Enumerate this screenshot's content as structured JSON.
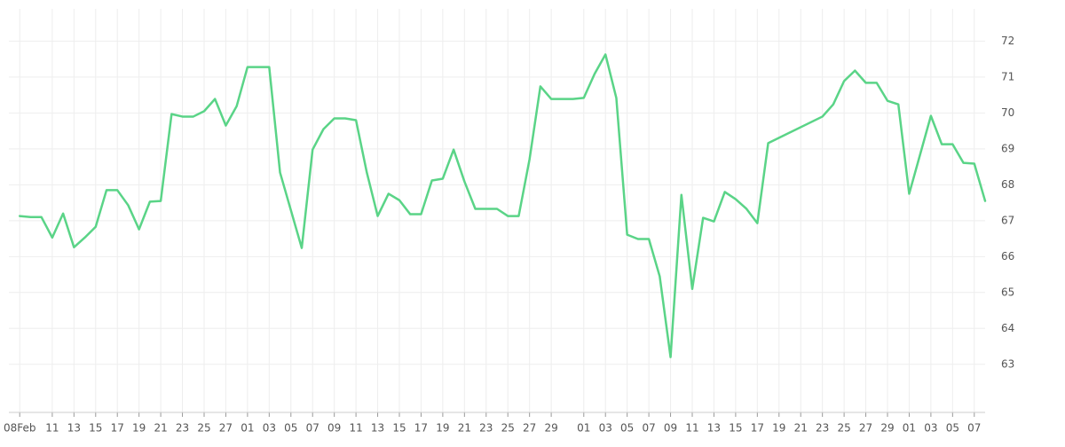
{
  "chart_data": {
    "type": "line",
    "color": "#5ad487",
    "grid": true,
    "x": [
      "02-08",
      "02-09",
      "02-10",
      "02-11",
      "02-12",
      "02-13",
      "02-14",
      "02-15",
      "02-16",
      "02-17",
      "02-18",
      "02-19",
      "02-20",
      "02-21",
      "02-22",
      "02-23",
      "02-24",
      "02-25",
      "02-26",
      "02-27",
      "02-28",
      "03-01",
      "03-02",
      "03-03",
      "03-04",
      "03-06",
      "03-07",
      "03-08",
      "03-09",
      "03-10",
      "03-11",
      "03-12",
      "03-13",
      "03-14",
      "03-15",
      "03-16",
      "03-17",
      "03-18",
      "03-19",
      "03-20",
      "03-21",
      "03-22",
      "03-23",
      "03-24",
      "03-25",
      "03-26",
      "03-27",
      "03-28",
      "03-29",
      "03-30",
      "03-31",
      "04-01",
      "04-02",
      "04-03",
      "04-04",
      "04-05",
      "04-06",
      "04-07",
      "04-08",
      "04-09",
      "04-10",
      "04-11",
      "04-12",
      "04-13",
      "04-14",
      "04-15",
      "04-16",
      "04-17",
      "04-18",
      "04-23",
      "04-24",
      "04-25",
      "04-26",
      "04-27",
      "04-28",
      "04-29",
      "04-30",
      "05-01",
      "05-03",
      "05-04",
      "05-05",
      "05-06",
      "05-07",
      "05-08"
    ],
    "values": [
      67.13,
      67.1,
      67.1,
      66.53,
      67.2,
      66.26,
      66.53,
      66.83,
      67.85,
      67.85,
      67.43,
      66.76,
      67.53,
      67.55,
      69.97,
      69.9,
      69.9,
      70.05,
      70.39,
      69.65,
      70.19,
      71.28,
      71.28,
      71.28,
      68.34,
      66.24,
      68.98,
      69.55,
      69.85,
      69.85,
      69.8,
      68.34,
      67.13,
      67.75,
      67.57,
      67.18,
      67.18,
      68.12,
      68.17,
      68.98,
      68.09,
      67.33,
      67.33,
      67.33,
      67.13,
      67.13,
      68.71,
      70.74,
      70.39,
      70.39,
      70.39,
      70.42,
      71.09,
      71.63,
      70.42,
      66.61,
      66.49,
      66.49,
      65.45,
      63.2,
      67.72,
      65.1,
      67.08,
      66.98,
      67.8,
      67.6,
      67.33,
      66.93,
      69.16,
      69.9,
      70.24,
      70.89,
      71.18,
      70.84,
      70.84,
      70.34,
      70.24,
      67.75,
      69.92,
      69.13,
      69.13,
      68.61,
      68.59,
      67.55
    ],
    "xlim": [
      "02-07",
      "05-08"
    ],
    "xticks": [
      {
        "value": "02-08",
        "label": "08Feb"
      },
      {
        "value": "02-11",
        "label": "11"
      },
      {
        "value": "02-13",
        "label": "13"
      },
      {
        "value": "02-15",
        "label": "15"
      },
      {
        "value": "02-17",
        "label": "17"
      },
      {
        "value": "02-19",
        "label": "19"
      },
      {
        "value": "02-21",
        "label": "21"
      },
      {
        "value": "02-23",
        "label": "23"
      },
      {
        "value": "02-25",
        "label": "25"
      },
      {
        "value": "02-27",
        "label": "27"
      },
      {
        "value": "03-01",
        "label": "01"
      },
      {
        "value": "03-03",
        "label": "03"
      },
      {
        "value": "03-05",
        "label": "05"
      },
      {
        "value": "03-07",
        "label": "07"
      },
      {
        "value": "03-09",
        "label": "09"
      },
      {
        "value": "03-11",
        "label": "11"
      },
      {
        "value": "03-13",
        "label": "13"
      },
      {
        "value": "03-15",
        "label": "15"
      },
      {
        "value": "03-17",
        "label": "17"
      },
      {
        "value": "03-19",
        "label": "19"
      },
      {
        "value": "03-21",
        "label": "21"
      },
      {
        "value": "03-23",
        "label": "23"
      },
      {
        "value": "03-25",
        "label": "25"
      },
      {
        "value": "03-27",
        "label": "27"
      },
      {
        "value": "03-29",
        "label": "29"
      },
      {
        "value": "04-01",
        "label": "01"
      },
      {
        "value": "04-03",
        "label": "03"
      },
      {
        "value": "04-05",
        "label": "05"
      },
      {
        "value": "04-07",
        "label": "07"
      },
      {
        "value": "04-09",
        "label": "09"
      },
      {
        "value": "04-11",
        "label": "11"
      },
      {
        "value": "04-13",
        "label": "13"
      },
      {
        "value": "04-15",
        "label": "15"
      },
      {
        "value": "04-17",
        "label": "17"
      },
      {
        "value": "04-19",
        "label": "19"
      },
      {
        "value": "04-21",
        "label": "21"
      },
      {
        "value": "04-23",
        "label": "23"
      },
      {
        "value": "04-25",
        "label": "25"
      },
      {
        "value": "04-27",
        "label": "27"
      },
      {
        "value": "04-29",
        "label": "29"
      },
      {
        "value": "05-01",
        "label": "01"
      },
      {
        "value": "05-03",
        "label": "03"
      },
      {
        "value": "05-05",
        "label": "05"
      },
      {
        "value": "05-07",
        "label": "07"
      }
    ],
    "ylim": [
      61.66,
      72.9
    ],
    "yticks": [
      63,
      64,
      65,
      66,
      67,
      68,
      69,
      70,
      71,
      72
    ]
  }
}
